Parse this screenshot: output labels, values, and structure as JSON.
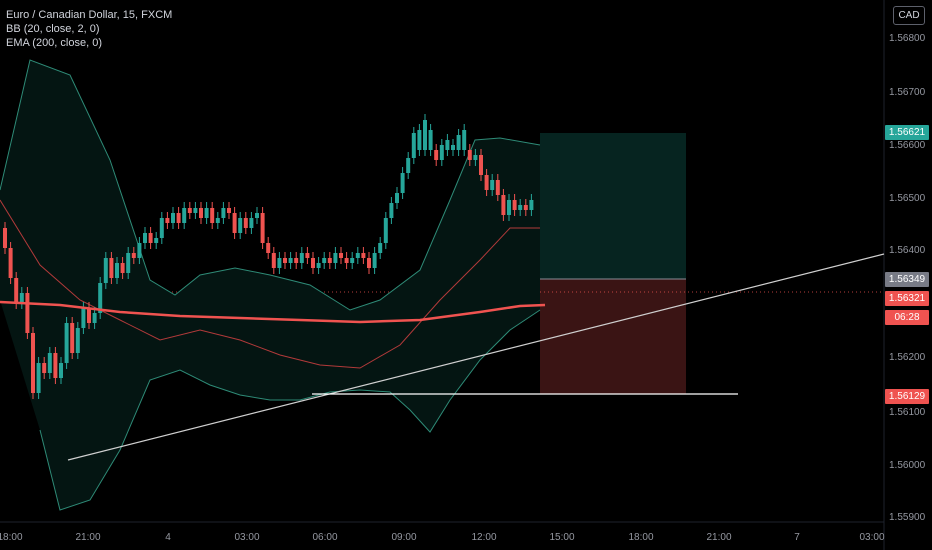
{
  "legend": {
    "symbol": "Euro / Canadian Dollar, 15, FXCM",
    "bb": "BB (20, close, 2, 0)",
    "ema": "EMA (200, close, 0)"
  },
  "currency": "CAD",
  "price_axis": {
    "ticks": [
      "1.56800",
      "1.56700",
      "1.56600",
      "1.56500",
      "1.56400",
      "1.56200",
      "1.56100",
      "1.56000",
      "1.55900"
    ],
    "tags": {
      "target": "1.56621",
      "last_gray": "1.56349",
      "current": "1.56321",
      "countdown": "06:28",
      "stop": "1.56129"
    }
  },
  "time_axis": [
    "18:00",
    "21:00",
    "4",
    "03:00",
    "06:00",
    "09:00",
    "12:00",
    "15:00",
    "18:00",
    "21:00",
    "7",
    "03:00"
  ],
  "colors": {
    "background": "#000000",
    "up": "#26a69a",
    "down": "#ef5350",
    "ema": "#f05350",
    "bb": "#2e8b77",
    "target_zone": "#062420",
    "stop_zone": "#3a1414",
    "trendline": "#d0d0d0"
  }
}
